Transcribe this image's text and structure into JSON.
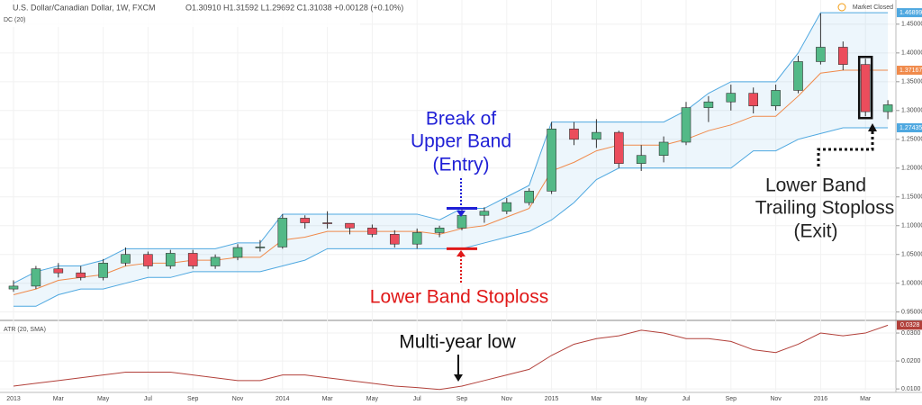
{
  "chart_data": [
    {
      "type": "candlestick",
      "title": "U.S. Dollar/Canadian Dollar, 1W, FXCM",
      "ohlc_text": "O1.30910 H1.31592 L1.29692 C1.31038 +0.00128 (+0.10%)",
      "status": "Market Closed",
      "indicator": "DC (20)",
      "categories": [
        "2013",
        null,
        "Mar",
        null,
        "May",
        null,
        "Jul",
        null,
        "Sep",
        null,
        "Nov",
        null,
        "2014",
        null,
        "Mar",
        null,
        "May",
        null,
        "Jul",
        null,
        "Sep",
        null,
        "Nov",
        null,
        "2015",
        null,
        "Mar",
        null,
        "May",
        null,
        "Jul",
        null,
        "Sep",
        null,
        "Nov",
        null,
        "2016",
        null,
        "Mar",
        null
      ],
      "open": [
        0.99,
        0.995,
        1.025,
        1.018,
        1.01,
        1.035,
        1.05,
        1.03,
        1.052,
        1.03,
        1.045,
        1.062,
        1.063,
        1.113,
        1.105,
        1.104,
        1.096,
        1.085,
        1.068,
        1.088,
        1.096,
        1.118,
        1.125,
        1.14,
        1.16,
        1.268,
        1.25,
        1.262,
        1.208,
        1.222,
        1.245,
        1.305,
        1.315,
        1.33,
        1.308,
        1.335,
        1.385,
        1.41,
        1.38,
        1.298
      ],
      "high": [
        1.005,
        1.03,
        1.035,
        1.03,
        1.042,
        1.062,
        1.055,
        1.058,
        1.058,
        1.05,
        1.068,
        1.075,
        1.12,
        1.118,
        1.125,
        1.1,
        1.102,
        1.092,
        1.095,
        1.1,
        1.128,
        1.132,
        1.148,
        1.165,
        1.28,
        1.28,
        1.285,
        1.265,
        1.24,
        1.255,
        1.315,
        1.325,
        1.345,
        1.34,
        1.345,
        1.395,
        1.469,
        1.42,
        1.39,
        1.318
      ],
      "low": [
        0.985,
        0.99,
        1.01,
        1.005,
        1.005,
        1.03,
        1.025,
        1.025,
        1.025,
        1.025,
        1.04,
        1.055,
        1.06,
        1.095,
        1.095,
        1.085,
        1.08,
        1.062,
        1.06,
        1.08,
        1.092,
        1.105,
        1.12,
        1.135,
        1.155,
        1.24,
        1.235,
        1.2,
        1.195,
        1.21,
        1.24,
        1.28,
        1.3,
        1.295,
        1.3,
        1.33,
        1.38,
        1.37,
        1.29,
        1.285
      ],
      "close": [
        0.995,
        1.025,
        1.018,
        1.01,
        1.035,
        1.05,
        1.03,
        1.052,
        1.03,
        1.045,
        1.062,
        1.063,
        1.113,
        1.105,
        1.104,
        1.096,
        1.085,
        1.068,
        1.088,
        1.096,
        1.118,
        1.125,
        1.14,
        1.16,
        1.268,
        1.25,
        1.262,
        1.208,
        1.222,
        1.245,
        1.305,
        1.315,
        1.33,
        1.308,
        1.335,
        1.385,
        1.41,
        1.38,
        1.298,
        1.31
      ],
      "up_color": "#53b987",
      "down_color": "#eb4d5c",
      "series": [
        {
          "color": "#4fa8e0",
          "values": [
            1.0,
            1.02,
            1.03,
            1.03,
            1.04,
            1.06,
            1.06,
            1.06,
            1.06,
            1.06,
            1.07,
            1.07,
            1.12,
            1.12,
            1.12,
            1.12,
            1.12,
            1.12,
            1.12,
            1.11,
            1.13,
            1.13,
            1.15,
            1.17,
            1.28,
            1.28,
            1.28,
            1.28,
            1.28,
            1.28,
            1.3,
            1.33,
            1.35,
            1.35,
            1.35,
            1.4,
            1.47,
            1.47,
            1.47,
            1.47
          ]
        },
        {
          "color": "#f08a4b",
          "values": [
            0.98,
            0.99,
            1.005,
            1.01,
            1.015,
            1.03,
            1.035,
            1.035,
            1.04,
            1.04,
            1.045,
            1.045,
            1.075,
            1.08,
            1.09,
            1.09,
            1.09,
            1.09,
            1.09,
            1.085,
            1.095,
            1.1,
            1.115,
            1.13,
            1.195,
            1.21,
            1.23,
            1.24,
            1.24,
            1.24,
            1.25,
            1.265,
            1.275,
            1.29,
            1.29,
            1.325,
            1.365,
            1.37,
            1.37,
            1.37
          ]
        },
        {
          "color": "#4fa8e0",
          "values": [
            0.96,
            0.96,
            0.98,
            0.99,
            0.99,
            1.0,
            1.01,
            1.01,
            1.02,
            1.02,
            1.02,
            1.02,
            1.03,
            1.04,
            1.06,
            1.06,
            1.06,
            1.06,
            1.06,
            1.06,
            1.06,
            1.07,
            1.08,
            1.09,
            1.11,
            1.14,
            1.18,
            1.2,
            1.2,
            1.2,
            1.2,
            1.2,
            1.2,
            1.23,
            1.23,
            1.25,
            1.26,
            1.27,
            1.27,
            1.27
          ]
        }
      ],
      "last_labels": [
        "1.46899",
        "1.37167",
        "1.27435"
      ],
      "ylim": [
        0.937,
        1.492
      ],
      "yticks": [
        {
          "value": 0.95,
          "label": "0.95000"
        },
        {
          "value": 1.0,
          "label": "1.00000"
        },
        {
          "value": 1.05,
          "label": "1.05000"
        },
        {
          "value": 1.1,
          "label": "1.10000"
        },
        {
          "value": 1.15,
          "label": "1.15000"
        },
        {
          "value": 1.2,
          "label": "1.20000"
        },
        {
          "value": 1.25,
          "label": "1.25000"
        },
        {
          "value": 1.3,
          "label": "1.30000"
        },
        {
          "value": 1.35,
          "label": "1.35000"
        },
        {
          "value": 1.4,
          "label": "1.40000"
        },
        {
          "value": 1.45,
          "label": "1.45000"
        }
      ],
      "grid": true,
      "annotations": {
        "entry": [
          "Break of",
          "Upper Band",
          "(Entry)"
        ],
        "stop": [
          "Lower Band Stoploss"
        ],
        "exit": [
          "Lower Band",
          "Trailing Stoploss",
          "(Exit)"
        ]
      }
    },
    {
      "type": "line",
      "title": "ATR (20, SMA)",
      "series": [
        {
          "color": "#b2403a",
          "values": [
            0.011,
            0.012,
            0.013,
            0.014,
            0.015,
            0.016,
            0.016,
            0.016,
            0.015,
            0.014,
            0.013,
            0.013,
            0.015,
            0.015,
            0.014,
            0.013,
            0.012,
            0.011,
            0.0105,
            0.0098,
            0.011,
            0.013,
            0.015,
            0.017,
            0.022,
            0.026,
            0.028,
            0.029,
            0.031,
            0.03,
            0.028,
            0.028,
            0.027,
            0.024,
            0.023,
            0.026,
            0.03,
            0.029,
            0.03,
            0.0328
          ]
        }
      ],
      "last_label": "0.0328",
      "ylim": [
        0.0094,
        0.0342
      ],
      "yticks": [
        {
          "value": 0.01,
          "label": "0.0100"
        },
        {
          "value": 0.02,
          "label": "0.0200"
        },
        {
          "value": 0.03,
          "label": "0.0300"
        }
      ],
      "annotation": "Multi-year low"
    }
  ]
}
